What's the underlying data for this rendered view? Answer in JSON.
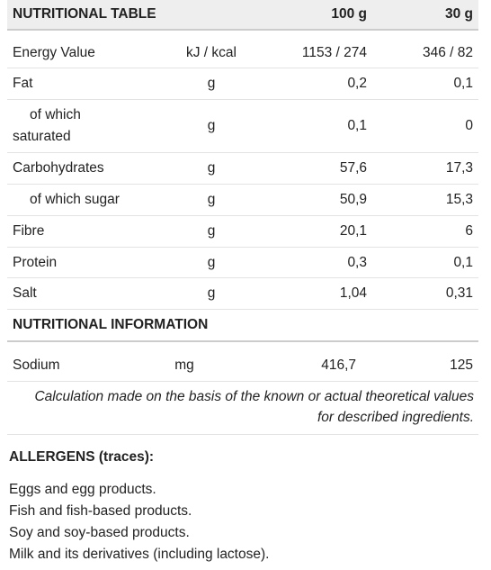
{
  "table": {
    "header": [
      "NUTRITIONAL TABLE",
      "100 g",
      "30 g"
    ],
    "rows": [
      [
        "Energy Value",
        "kJ / kcal",
        "1153 / 274",
        "346 / 82"
      ],
      [
        "Fat",
        "g",
        "0,2",
        "0,1"
      ],
      [
        "of which saturated",
        "g",
        "0,1",
        "0"
      ],
      [
        "Carbohydrates",
        "g",
        "57,6",
        "17,3"
      ],
      [
        "of which sugar",
        "g",
        "50,9",
        "15,3"
      ],
      [
        "Fibre",
        "g",
        "20,1",
        "6"
      ],
      [
        "Protein",
        "g",
        "0,3",
        "0,1"
      ],
      [
        "Salt",
        "g",
        "1,04",
        "0,31"
      ]
    ],
    "section": "NUTRITIONAL INFORMATION",
    "sodium": [
      "Sodium",
      "mg",
      "416,7",
      "125"
    ],
    "note": "Calculation made on the basis of the known or actual theoretical values for described ingredients."
  },
  "allergens": {
    "title": "ALLERGENS (traces):",
    "items": [
      "Eggs and egg products.",
      "Fish and fish-based products.",
      "Soy and soy-based products.",
      "Milk and its derivatives (including lactose)."
    ]
  }
}
